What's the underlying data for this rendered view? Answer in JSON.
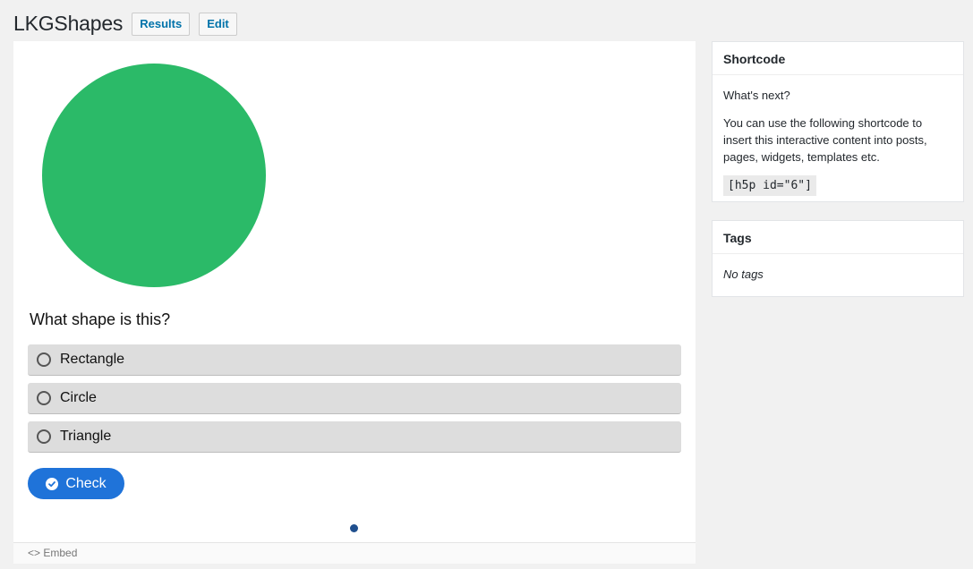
{
  "header": {
    "title": "LKGShapes",
    "results_label": "Results",
    "edit_label": "Edit"
  },
  "content": {
    "shape_color": "#2bba68",
    "question": "What shape is this?",
    "answers": [
      {
        "label": "Rectangle"
      },
      {
        "label": "Circle"
      },
      {
        "label": "Triangle"
      }
    ],
    "check_label": "Check",
    "embed_label": "<> Embed",
    "accent": "#1f73d9"
  },
  "sidebar": {
    "shortcode": {
      "title": "Shortcode",
      "whats_next": "What's next?",
      "description": "You can use the following shortcode to insert this interactive content into posts, pages, widgets, templates etc.",
      "code": "[h5p id=\"6\"]"
    },
    "tags": {
      "title": "Tags",
      "empty_text": "No tags"
    }
  }
}
